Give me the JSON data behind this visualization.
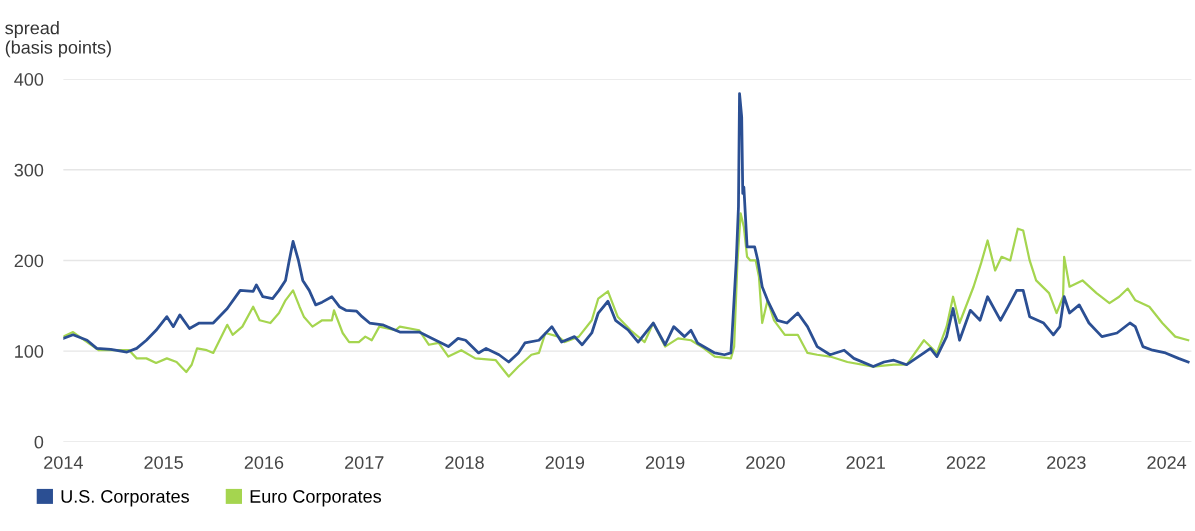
{
  "chart_data": {
    "type": "line",
    "ylabel": "spread\n(basis points)",
    "xlim": [
      2013.9,
      2024.36
    ],
    "xticks": [
      {
        "value": 2013.9,
        "label": "2014"
      },
      {
        "value": 2014.83,
        "label": "2015"
      },
      {
        "value": 2015.76,
        "label": "2016"
      },
      {
        "value": 2016.69,
        "label": "2017"
      },
      {
        "value": 2017.62,
        "label": "2018"
      },
      {
        "value": 2018.55,
        "label": "2019"
      },
      {
        "value": 2019.48,
        "label": "2019"
      },
      {
        "value": 2020.41,
        "label": "2020"
      },
      {
        "value": 2021.34,
        "label": "2021"
      },
      {
        "value": 2022.27,
        "label": "2022"
      },
      {
        "value": 2023.2,
        "label": "2023"
      },
      {
        "value": 2024.13,
        "label": "2024"
      }
    ],
    "ylim": [
      0,
      400
    ],
    "yticks": [
      0,
      100,
      200,
      300,
      400
    ],
    "grid": "y",
    "legend": "bottom left",
    "series": [
      {
        "name": "U.S. Corporates",
        "color": "#2b4f93",
        "x": [
          2013.9,
          2013.99,
          2014.12,
          2014.21,
          2014.34,
          2014.49,
          2014.58,
          2014.67,
          2014.76,
          2014.86,
          2014.92,
          2014.98,
          2015.07,
          2015.16,
          2015.29,
          2015.42,
          2015.54,
          2015.66,
          2015.69,
          2015.75,
          2015.84,
          2015.9,
          2015.96,
          2015.99,
          2016.03,
          2016.08,
          2016.12,
          2016.18,
          2016.24,
          2016.3,
          2016.39,
          2016.46,
          2016.52,
          2016.62,
          2016.67,
          2016.74,
          2016.86,
          2016.98,
          2017.02,
          2017.2,
          2017.32,
          2017.47,
          2017.56,
          2017.63,
          2017.75,
          2017.82,
          2017.94,
          2018.03,
          2018.12,
          2018.18,
          2018.31,
          2018.43,
          2018.52,
          2018.64,
          2018.71,
          2018.8,
          2018.86,
          2018.95,
          2019.02,
          2019.14,
          2019.23,
          2019.37,
          2019.48,
          2019.56,
          2019.66,
          2019.72,
          2019.78,
          2019.94,
          2020.03,
          2020.09,
          2020.1,
          2020.14,
          2020.16,
          2020.17,
          2020.19,
          2020.2,
          2020.21,
          2020.24,
          2020.31,
          2020.34,
          2020.38,
          2020.43,
          2020.52,
          2020.61,
          2020.71,
          2020.8,
          2020.89,
          2021.01,
          2021.14,
          2021.23,
          2021.41,
          2021.51,
          2021.6,
          2021.72,
          2021.88,
          2021.94,
          2022.0,
          2022.09,
          2022.15,
          2022.21,
          2022.31,
          2022.4,
          2022.47,
          2022.59,
          2022.66,
          2022.74,
          2022.8,
          2022.86,
          2022.99,
          2023.08,
          2023.14,
          2023.18,
          2023.23,
          2023.32,
          2023.41,
          2023.53,
          2023.67,
          2023.79,
          2023.84,
          2023.91,
          2024.0,
          2024.12,
          2024.24,
          2024.33
        ],
        "values": [
          114,
          118,
          112,
          103,
          102,
          99,
          103,
          112,
          123,
          138,
          127,
          140,
          125,
          131,
          131,
          147,
          167,
          166,
          173,
          160,
          158,
          167,
          178,
          197,
          221,
          200,
          178,
          167,
          151,
          154,
          160,
          149,
          145,
          144,
          138,
          131,
          129,
          123,
          121,
          121,
          114,
          105,
          114,
          112,
          98,
          103,
          96,
          88,
          98,
          109,
          112,
          127,
          110,
          116,
          107,
          120,
          142,
          155,
          134,
          123,
          110,
          131,
          107,
          127,
          116,
          123,
          109,
          98,
          96,
          98,
          116,
          200,
          259,
          384,
          358,
          274,
          281,
          215,
          215,
          200,
          171,
          156,
          134,
          131,
          142,
          127,
          105,
          96,
          101,
          92,
          83,
          88,
          90,
          85,
          98,
          103,
          94,
          116,
          147,
          112,
          145,
          134,
          160,
          134,
          149,
          167,
          167,
          138,
          131,
          118,
          127,
          160,
          142,
          151,
          131,
          116,
          120,
          131,
          127,
          105,
          101,
          98,
          92,
          88
        ]
      },
      {
        "name": "Euro Corporates",
        "color": "#a5d54f",
        "x": [
          2013.9,
          2013.99,
          2014.12,
          2014.23,
          2014.39,
          2014.51,
          2014.58,
          2014.67,
          2014.76,
          2014.86,
          2014.95,
          2015.04,
          2015.09,
          2015.14,
          2015.23,
          2015.29,
          2015.42,
          2015.47,
          2015.56,
          2015.66,
          2015.72,
          2015.82,
          2015.9,
          2015.96,
          2016.03,
          2016.09,
          2016.13,
          2016.21,
          2016.3,
          2016.39,
          2016.41,
          2016.49,
          2016.55,
          2016.64,
          2016.7,
          2016.76,
          2016.83,
          2016.98,
          2017.02,
          2017.2,
          2017.29,
          2017.38,
          2017.47,
          2017.59,
          2017.72,
          2017.91,
          2018.03,
          2018.12,
          2018.24,
          2018.31,
          2018.37,
          2018.49,
          2018.55,
          2018.68,
          2018.8,
          2018.86,
          2018.95,
          2019.04,
          2019.16,
          2019.29,
          2019.37,
          2019.48,
          2019.6,
          2019.72,
          2019.84,
          2019.94,
          2020.09,
          2020.12,
          2020.15,
          2020.18,
          2020.21,
          2020.24,
          2020.27,
          2020.32,
          2020.35,
          2020.38,
          2020.43,
          2020.49,
          2020.59,
          2020.71,
          2020.8,
          2020.89,
          2021.01,
          2021.17,
          2021.41,
          2021.6,
          2021.72,
          2021.88,
          2022.0,
          2022.09,
          2022.15,
          2022.21,
          2022.34,
          2022.41,
          2022.47,
          2022.54,
          2022.6,
          2022.68,
          2022.75,
          2022.8,
          2022.86,
          2022.92,
          2023.04,
          2023.11,
          2023.17,
          2023.18,
          2023.23,
          2023.35,
          2023.48,
          2023.6,
          2023.69,
          2023.77,
          2023.84,
          2023.97,
          2024.09,
          2024.21,
          2024.33
        ],
        "values": [
          116,
          121,
          110,
          101,
          101,
          101,
          92,
          92,
          87,
          92,
          88,
          77,
          85,
          103,
          101,
          98,
          129,
          118,
          127,
          149,
          134,
          131,
          142,
          156,
          167,
          149,
          138,
          127,
          134,
          134,
          145,
          120,
          110,
          110,
          116,
          112,
          127,
          123,
          127,
          123,
          107,
          109,
          94,
          101,
          92,
          90,
          72,
          83,
          96,
          98,
          120,
          116,
          110,
          116,
          134,
          158,
          166,
          138,
          123,
          110,
          131,
          105,
          114,
          112,
          103,
          94,
          92,
          105,
          197,
          252,
          237,
          204,
          200,
          200,
          182,
          131,
          156,
          134,
          118,
          118,
          98,
          96,
          94,
          88,
          83,
          85,
          85,
          112,
          98,
          127,
          160,
          131,
          171,
          197,
          222,
          189,
          204,
          200,
          235,
          233,
          200,
          178,
          164,
          142,
          160,
          204,
          171,
          178,
          164,
          153,
          160,
          169,
          156,
          149,
          131,
          116,
          112
        ]
      }
    ]
  }
}
